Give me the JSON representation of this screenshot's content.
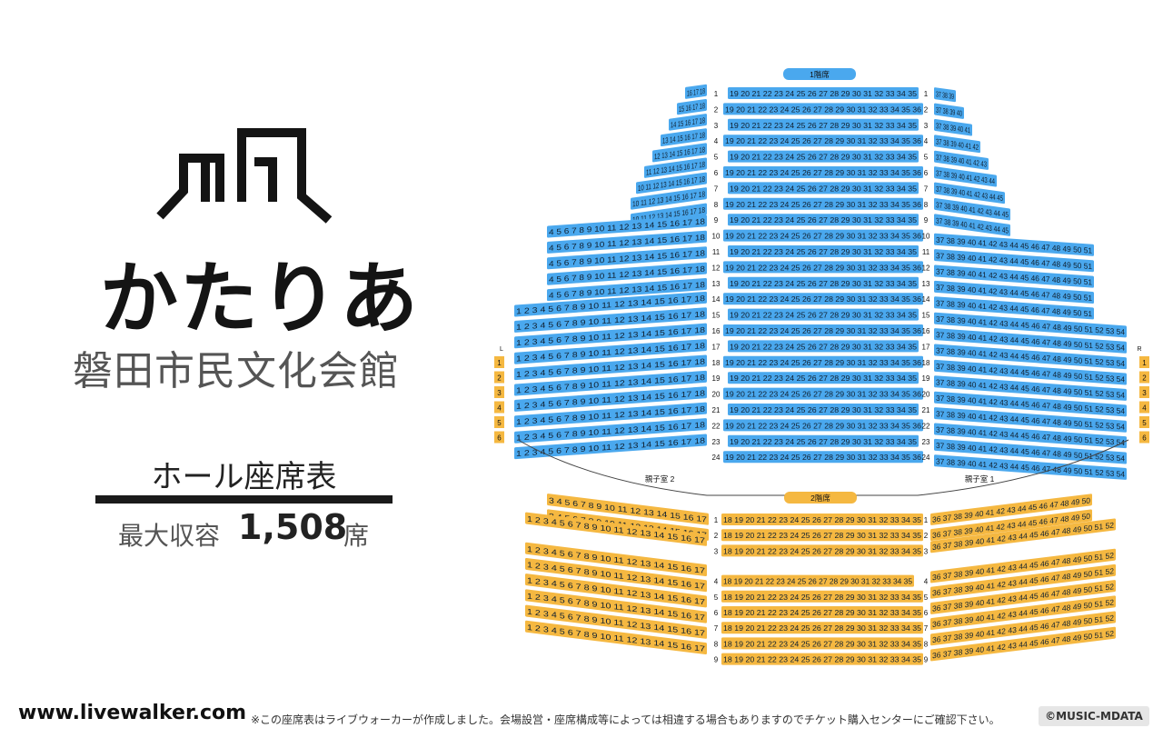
{
  "brand": {
    "logo_icon": "hall-building-icon",
    "hall_name": "かたりあ",
    "venue_name": "磐田市民文化会館",
    "table_title": "ホール座席表",
    "capacity_label": "最大収容",
    "capacity_value": "1,508",
    "capacity_unit": "席"
  },
  "seat_map": {
    "floors": [
      {
        "label": "1階席",
        "color": "#4aa8ee",
        "row_labels": [
          "1",
          "2",
          "3",
          "4",
          "5",
          "6",
          "7",
          "8",
          "9",
          "10",
          "11",
          "12",
          "13",
          "14",
          "15",
          "16",
          "17",
          "18",
          "19",
          "20",
          "21",
          "22",
          "23",
          "24"
        ],
        "center_seats_odd": "19 20 21 22 23 24 25 26 27 28 29 30 31 32 33 34 35",
        "center_seats_even": "19 20 21 22 23 24 25 26 27 28 29 30 31 32 33 34 35 36",
        "left_seats_first_rows": [
          "16 17 18",
          "15 16 17 18",
          "14 15 16 17 18",
          "13 14 15 16 17 18",
          "12 13 14 15 16 17 18",
          "11 12 13 14 15 16 17 18",
          "10 11 12 13 14 15 16 17 18"
        ],
        "right_seats_first_rows": [
          "37 38 39",
          "37 38 39 40",
          "37 38 39 40 41",
          "37 38 39 40 41 42",
          "37 38 39 40 41 42 43",
          "37 38 39 40 41 42 43 44",
          "37 38 39 40 41 42 43 44 45"
        ],
        "left_seats_rear": "4 5 6 7 8 9 10 11 12 13 14 15 16 17 18",
        "left_seats_rear_wide": "1 2 3 4 5 6 7 8 9 10 11 12 13 14 15 16 17 18",
        "right_seats_rear": "37 38 39 40 41 42 43 44 45 46 47 48 49 50 51",
        "right_seats_rear_wide": "37 38 39 40 41 42 43 44 45 46 47 48 49 50 51 52 53 54",
        "parent_child_rooms": [
          "親子室 2",
          "親子室 1"
        ],
        "box_left": {
          "label": "L",
          "seats": [
            "1",
            "2",
            "3",
            "4",
            "5",
            "6"
          ]
        },
        "box_right": {
          "label": "R",
          "seats": [
            "1",
            "2",
            "3",
            "4",
            "5",
            "6"
          ]
        }
      },
      {
        "label": "2階席",
        "color": "#f5b841",
        "row_labels": [
          "1",
          "2",
          "3",
          "4",
          "5",
          "6",
          "7",
          "8",
          "9"
        ],
        "center_seats": "18 19 20 21 22 23 24 25 26 27 28 29 30 31 32 33 34 35",
        "left_seats": "3 4 5 6 7 8 9 10 11 12 13 14 15 16 17",
        "left_seats_wide": "1 2 3 4 5 6 7 8 9 10 11 12 13 14 15 16 17",
        "right_seats": "36 37 38 39 40 41 42 43 44 45 46 47 48 49 50",
        "right_seats_wide": "36 37 38 39 40 41 42 43 44 45 46 47 48 49 50 51 52"
      }
    ]
  },
  "footer": {
    "url": "www.livewalker.com",
    "note": "※この座席表はライブウォーカーが作成しました。会場設営・座席構成等によっては相違する場合もありますのでチケット購入センターにご確認下さい。",
    "copyright": "©MUSIC-MDATA"
  }
}
